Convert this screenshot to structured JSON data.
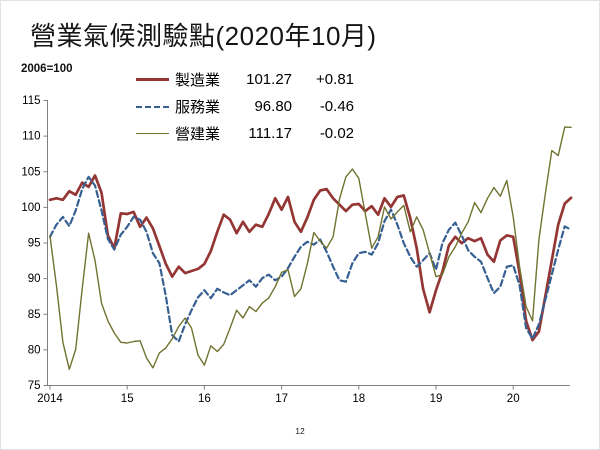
{
  "title": "營業氣候測驗點(2020年10月)",
  "axis_note": "2006=100",
  "page_number": "12",
  "colors": {
    "manufacturing": "#943634",
    "services": "#376092",
    "construction": "#717331",
    "axis": "#808080",
    "text": "#000000"
  },
  "legend": [
    {
      "label": "製造業",
      "value": "101.27",
      "change": "+0.81",
      "color": "#943634",
      "style": "solid-thick"
    },
    {
      "label": "服務業",
      "value": "96.80",
      "change": "-0.46",
      "color": "#376092",
      "style": "dashed"
    },
    {
      "label": "營建業",
      "value": "111.17",
      "change": "-0.02",
      "color": "#717331",
      "style": "solid-thin"
    }
  ],
  "chart_data": {
    "type": "line",
    "title": "營業氣候測驗點(2020年10月)",
    "y_axis_note": "2006=100",
    "x_unit": "month",
    "x_start": "2014-01",
    "x_end": "2020-10",
    "x_tick_labels": [
      "2014",
      "15",
      "16",
      "17",
      "18",
      "19",
      "20"
    ],
    "y_ticks": [
      75,
      80,
      85,
      90,
      95,
      100,
      105,
      110,
      115
    ],
    "ylim": [
      75,
      115
    ],
    "grid": false,
    "legend_position": "top",
    "series": [
      {
        "name": "製造業",
        "slug": "manufacturing",
        "color": "#943634",
        "line": "solid",
        "width": 2.7,
        "latest_value": 101.27,
        "monthly_change": 0.81,
        "values": [
          101.0,
          101.2,
          101.0,
          102.2,
          101.7,
          103.4,
          102.8,
          104.4,
          102.0,
          96.0,
          94.2,
          99.1,
          99.0,
          99.3,
          97.2,
          98.5,
          97.0,
          94.5,
          92.0,
          90.2,
          91.6,
          90.7,
          91.0,
          91.3,
          92.0,
          93.8,
          96.5,
          98.9,
          98.2,
          96.3,
          97.9,
          96.5,
          97.5,
          97.2,
          99.0,
          101.2,
          99.6,
          101.4,
          97.9,
          96.5,
          98.5,
          101.0,
          102.3,
          102.5,
          101.2,
          100.3,
          99.4,
          100.3,
          100.4,
          99.4,
          100.1,
          98.9,
          101.2,
          100.0,
          101.4,
          101.6,
          98.4,
          94.2,
          88.5,
          85.2,
          88.3,
          90.9,
          94.6,
          95.8,
          94.9,
          95.6,
          95.2,
          95.6,
          93.3,
          92.3,
          95.3,
          96.0,
          95.8,
          90.7,
          84.0,
          81.3,
          82.5,
          87.5,
          92.5,
          97.5,
          100.46,
          101.27
        ]
      },
      {
        "name": "服務業",
        "slug": "services",
        "color": "#376092",
        "line": "dashed",
        "width": 2.2,
        "latest_value": 96.8,
        "monthly_change": -0.46,
        "values": [
          95.8,
          97.5,
          98.6,
          97.3,
          99.5,
          102.5,
          104.2,
          103.0,
          99.5,
          95.5,
          94.0,
          96.1,
          97.2,
          98.6,
          98.2,
          96.5,
          93.5,
          92.1,
          87.5,
          82.0,
          81.1,
          83.5,
          85.5,
          87.3,
          88.3,
          87.2,
          88.5,
          88.0,
          87.6,
          88.3,
          89.0,
          89.7,
          88.8,
          90.0,
          90.5,
          89.7,
          90.2,
          91.4,
          93.0,
          94.4,
          95.1,
          94.7,
          95.4,
          93.7,
          91.6,
          89.7,
          89.5,
          92.1,
          93.5,
          93.7,
          93.3,
          94.9,
          98.0,
          99.6,
          97.5,
          94.9,
          93.0,
          91.6,
          92.5,
          93.5,
          91.2,
          94.9,
          96.8,
          97.8,
          96.0,
          93.9,
          93.0,
          92.3,
          90.0,
          87.9,
          88.8,
          91.6,
          91.8,
          89.0,
          83.0,
          81.5,
          83.5,
          87.0,
          90.5,
          94.0,
          97.26,
          96.8
        ]
      },
      {
        "name": "營建業",
        "slug": "construction",
        "color": "#717331",
        "line": "solid",
        "width": 1.4,
        "latest_value": 111.17,
        "monthly_change": -0.02,
        "values": [
          95.9,
          89.0,
          81.0,
          77.2,
          80.0,
          88.5,
          96.3,
          92.5,
          86.5,
          84.0,
          82.3,
          81.0,
          80.9,
          81.1,
          81.2,
          78.8,
          77.4,
          79.5,
          80.2,
          81.5,
          83.2,
          84.4,
          83.0,
          79.2,
          77.8,
          80.5,
          79.7,
          80.7,
          83.0,
          85.5,
          84.4,
          86.0,
          85.3,
          86.5,
          87.2,
          88.8,
          90.8,
          91.2,
          87.4,
          88.5,
          92.0,
          96.4,
          95.2,
          94.2,
          95.8,
          101.1,
          104.2,
          105.3,
          104.0,
          99.1,
          94.2,
          95.8,
          100.0,
          98.3,
          99.3,
          100.2,
          96.5,
          98.6,
          96.8,
          93.5,
          90.2,
          90.5,
          93.0,
          94.4,
          96.3,
          97.9,
          100.6,
          99.2,
          101.2,
          102.7,
          101.5,
          103.7,
          98.6,
          91.6,
          86.0,
          84.0,
          95.4,
          101.9,
          107.9,
          107.2,
          111.19,
          111.17
        ]
      }
    ]
  }
}
